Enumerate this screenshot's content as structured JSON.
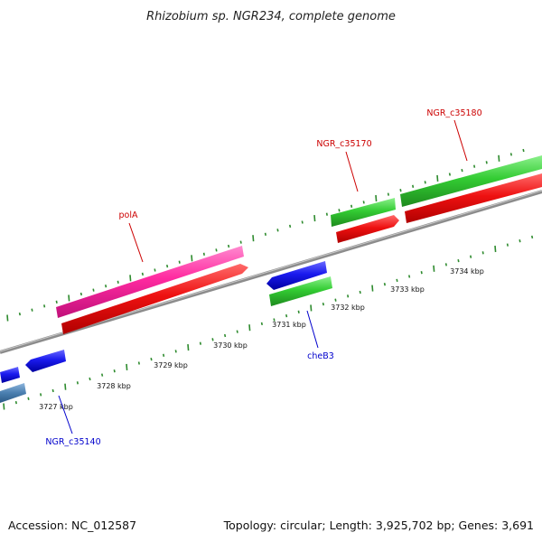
{
  "title": "Rhizobium sp. NGR234, complete genome",
  "footer": {
    "accession": "Accession: NC_012587",
    "summary": "Topology: circular; Length: 3,925,702 bp; Genes: 3,691"
  },
  "scale": {
    "tick_labels": [
      "3727 kbp",
      "3728 kbp",
      "3729 kbp",
      "3730 kbp",
      "3731 kbp",
      "3732 kbp",
      "3733 kbp",
      "3734 kbp"
    ]
  },
  "colors": {
    "backbone": "#8c8c8c",
    "tick": "#2e8b2e",
    "gene_label_red": "#cc0000",
    "gene_label_blue": "#0000cc",
    "cds_red": "#ee1111",
    "gene_green": "#33cc33",
    "gene_pink": "#ff2aa0",
    "gene_blue": "#1a1aee",
    "gene_steel": "#4a7fb0"
  },
  "gene_labels": [
    {
      "name": "NGR_c35140",
      "color": "blue"
    },
    {
      "name": "polA",
      "color": "red"
    },
    {
      "name": "cheB3",
      "color": "blue"
    },
    {
      "name": "NGR_c35170",
      "color": "red"
    },
    {
      "name": "NGR_c35180",
      "color": "red"
    }
  ]
}
